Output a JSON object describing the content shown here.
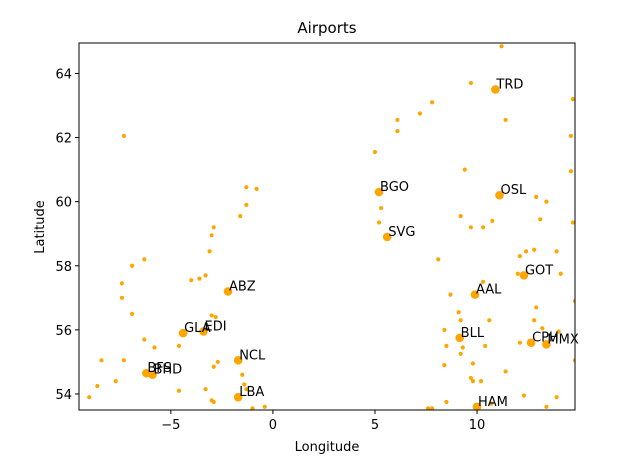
{
  "chart_data": {
    "type": "scatter",
    "title": "Airports",
    "xlabel": "Longitude",
    "ylabel": "Latitude",
    "xlim": [
      -9.5,
      14.8
    ],
    "ylim": [
      53.5,
      64.95
    ],
    "xticks": [
      -5,
      0,
      5,
      10
    ],
    "yticks": [
      54,
      56,
      58,
      60,
      62,
      64
    ],
    "xtick_labels": [
      "−5",
      "0",
      "5",
      "10"
    ],
    "ytick_labels": [
      "54",
      "56",
      "58",
      "60",
      "62",
      "64"
    ],
    "color": "#ffa500",
    "grid": false,
    "labeled_airports": [
      {
        "label": "TRD",
        "x": 10.9,
        "y": 63.5
      },
      {
        "label": "BGO",
        "x": 5.2,
        "y": 60.3
      },
      {
        "label": "OSL",
        "x": 11.1,
        "y": 60.2
      },
      {
        "label": "SVG",
        "x": 5.6,
        "y": 58.9
      },
      {
        "label": "ABZ",
        "x": -2.2,
        "y": 57.2
      },
      {
        "label": "AAL",
        "x": 9.9,
        "y": 57.1
      },
      {
        "label": "GOT",
        "x": 12.3,
        "y": 57.7
      },
      {
        "label": "GLA",
        "x": -4.4,
        "y": 55.9
      },
      {
        "label": "EDI",
        "x": -3.4,
        "y": 55.95
      },
      {
        "label": "BLL",
        "x": 9.15,
        "y": 55.75
      },
      {
        "label": "CPH",
        "x": 12.65,
        "y": 55.6
      },
      {
        "label": "MMX",
        "x": 13.4,
        "y": 55.55
      },
      {
        "label": "NCL",
        "x": -1.7,
        "y": 55.05
      },
      {
        "label": "BFS",
        "x": -6.2,
        "y": 54.65
      },
      {
        "label": "BHD",
        "x": -5.9,
        "y": 54.6
      },
      {
        "label": "LBA",
        "x": -1.7,
        "y": 53.9
      },
      {
        "label": "HAM",
        "x": 10.0,
        "y": 53.6
      }
    ],
    "small_airports": [
      [
        11.2,
        64.85
      ],
      [
        9.7,
        63.7
      ],
      [
        14.7,
        63.2
      ],
      [
        7.8,
        63.1
      ],
      [
        7.2,
        62.75
      ],
      [
        6.1,
        62.55
      ],
      [
        11.4,
        62.55
      ],
      [
        6.1,
        62.2
      ],
      [
        -7.3,
        62.05
      ],
      [
        14.6,
        62.05
      ],
      [
        5.0,
        61.55
      ],
      [
        14.6,
        60.95
      ],
      [
        9.4,
        61.0
      ],
      [
        -1.3,
        60.45
      ],
      [
        -0.8,
        60.4
      ],
      [
        12.9,
        60.15
      ],
      [
        13.4,
        60.0
      ],
      [
        -1.3,
        59.9
      ],
      [
        5.3,
        59.8
      ],
      [
        -1.6,
        59.55
      ],
      [
        9.2,
        59.55
      ],
      [
        10.75,
        59.4
      ],
      [
        14.7,
        59.35
      ],
      [
        5.2,
        59.35
      ],
      [
        13.1,
        59.45
      ],
      [
        -2.9,
        59.2
      ],
      [
        9.7,
        59.2
      ],
      [
        10.3,
        59.2
      ],
      [
        -3.0,
        58.95
      ],
      [
        12.8,
        58.5
      ],
      [
        12.4,
        58.45
      ],
      [
        -3.1,
        58.45
      ],
      [
        13.9,
        58.45
      ],
      [
        12.1,
        58.3
      ],
      [
        -6.3,
        58.2
      ],
      [
        8.1,
        58.2
      ],
      [
        -6.9,
        58.0
      ],
      [
        12.0,
        57.75
      ],
      [
        14.1,
        57.75
      ],
      [
        -3.3,
        57.7
      ],
      [
        -3.6,
        57.6
      ],
      [
        -4.0,
        57.55
      ],
      [
        -7.4,
        57.45
      ],
      [
        10.3,
        57.5
      ],
      [
        -7.4,
        57.0
      ],
      [
        8.7,
        57.1
      ],
      [
        -6.9,
        56.5
      ],
      [
        9.1,
        56.55
      ],
      [
        12.9,
        56.7
      ],
      [
        14.8,
        56.9
      ],
      [
        -3.0,
        56.45
      ],
      [
        -2.8,
        56.4
      ],
      [
        10.6,
        56.3
      ],
      [
        9.2,
        56.3
      ],
      [
        12.8,
        56.3
      ],
      [
        13.2,
        56.05
      ],
      [
        8.4,
        56.0
      ],
      [
        14.0,
        55.95
      ],
      [
        -6.3,
        55.7
      ],
      [
        12.1,
        55.6
      ],
      [
        10.4,
        55.5
      ],
      [
        -4.6,
        55.5
      ],
      [
        -5.8,
        55.45
      ],
      [
        8.5,
        55.5
      ],
      [
        9.3,
        55.45
      ],
      [
        9.2,
        55.25
      ],
      [
        -2.7,
        55.0
      ],
      [
        -2.9,
        54.85
      ],
      [
        14.8,
        55.05
      ],
      [
        -8.4,
        55.05
      ],
      [
        -7.3,
        55.05
      ],
      [
        8.4,
        54.9
      ],
      [
        9.8,
        54.95
      ],
      [
        11.4,
        54.7
      ],
      [
        -1.5,
        54.6
      ],
      [
        -7.7,
        54.4
      ],
      [
        -1.4,
        54.3
      ],
      [
        -8.6,
        54.25
      ],
      [
        9.8,
        54.4
      ],
      [
        10.2,
        54.4
      ],
      [
        9.7,
        54.5
      ],
      [
        -1.3,
        54.15
      ],
      [
        -3.3,
        54.15
      ],
      [
        -4.6,
        54.1
      ],
      [
        -9.0,
        53.9
      ],
      [
        12.3,
        53.95
      ],
      [
        13.9,
        53.9
      ],
      [
        8.5,
        53.75
      ],
      [
        -2.9,
        53.75
      ],
      [
        -3.0,
        53.8
      ],
      [
        -1.0,
        53.55
      ],
      [
        -0.4,
        53.6
      ],
      [
        -6.3,
        53.45
      ],
      [
        7.6,
        53.55
      ],
      [
        7.8,
        53.55
      ],
      [
        13.4,
        53.6
      ],
      [
        10.7,
        53.7
      ]
    ]
  }
}
